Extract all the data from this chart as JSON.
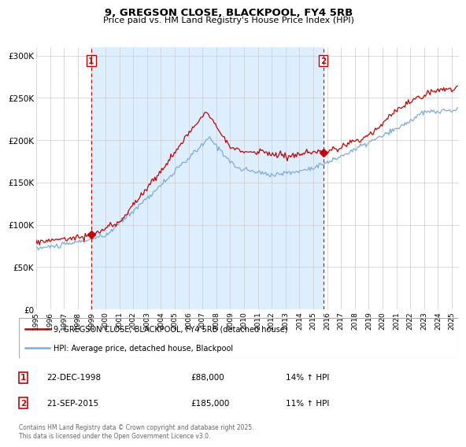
{
  "title_line1": "9, GREGSON CLOSE, BLACKPOOL, FY4 5RB",
  "title_line2": "Price paid vs. HM Land Registry's House Price Index (HPI)",
  "ylim": [
    0,
    310000
  ],
  "yticks": [
    0,
    50000,
    100000,
    150000,
    200000,
    250000,
    300000
  ],
  "ytick_labels": [
    "£0",
    "£50K",
    "£100K",
    "£150K",
    "£200K",
    "£250K",
    "£300K"
  ],
  "xlim_start": 1995.0,
  "xlim_end": 2025.5,
  "red_color": "#cc0000",
  "blue_color": "#7aaddc",
  "shade_color": "#ddeeff",
  "marker1_x": 1998.97,
  "marker1_y": 88000,
  "marker2_x": 2015.72,
  "marker2_y": 185000,
  "annotation1_date": "22-DEC-1998",
  "annotation1_price": "£88,000",
  "annotation1_hpi": "14% ↑ HPI",
  "annotation2_date": "21-SEP-2015",
  "annotation2_price": "£185,000",
  "annotation2_hpi": "11% ↑ HPI",
  "legend_label1": "9, GREGSON CLOSE, BLACKPOOL, FY4 5RB (detached house)",
  "legend_label2": "HPI: Average price, detached house, Blackpool",
  "footer_text": "Contains HM Land Registry data © Crown copyright and database right 2025.\nThis data is licensed under the Open Government Licence v3.0.",
  "background_color": "#ffffff",
  "grid_color": "#cccccc"
}
